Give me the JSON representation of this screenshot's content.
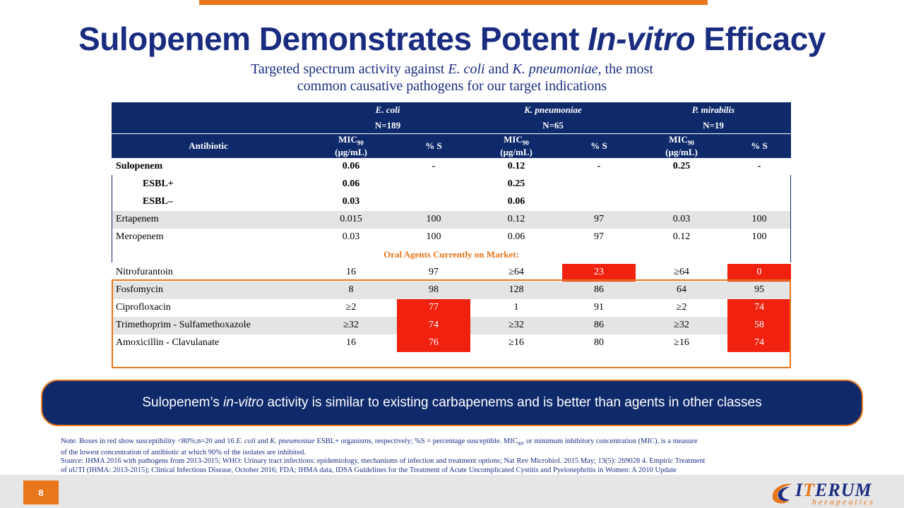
{
  "slide": {
    "title_prefix": "Sulopenem Demonstrates Potent ",
    "title_italic": "In-vitro",
    "title_suffix": " Efficacy",
    "subtitle_1": "Targeted spectrum activity against ",
    "subtitle_ecoli": "E. coli",
    "subtitle_and": " and ",
    "subtitle_kpn": "K. pneumoniae",
    "subtitle_2": ", the most",
    "subtitle_line2": "common causative pathogens for our target indications"
  },
  "table": {
    "organisms": [
      {
        "name": "E. coli",
        "n": "N=189"
      },
      {
        "name": "K. pneumoniae",
        "n": "N=65"
      },
      {
        "name": "P. mirabilis",
        "n": "N=19"
      }
    ],
    "antibiotic_header": "Antibiotic",
    "mic_label": "MIC",
    "mic_sub": "90",
    "mic_unit": "(µg/mL)",
    "pct_s": "% S",
    "rows": [
      {
        "name": "Sulopenem",
        "v": [
          "0.06",
          "-",
          "0.12",
          "-",
          "0.25",
          "-"
        ]
      },
      {
        "name": "ESBL+",
        "v": [
          "0.06",
          "",
          "0.25",
          "",
          "",
          ""
        ]
      },
      {
        "name": "ESBL–",
        "v": [
          "0.03",
          "",
          "0.06",
          "",
          "",
          ""
        ]
      },
      {
        "name": "Ertapenem",
        "v": [
          "0.015",
          "100",
          "0.12",
          "97",
          "0.03",
          "100"
        ]
      },
      {
        "name": "Meropenem",
        "v": [
          "0.03",
          "100",
          "0.06",
          "97",
          "0.12",
          "100"
        ]
      }
    ],
    "oral_header": "Oral Agents Currently on Market:",
    "oral_rows": [
      {
        "name": "Nitrofurantoin",
        "v": [
          "16",
          "97",
          "≥64",
          "23",
          "≥64",
          "0"
        ]
      },
      {
        "name": "Fosfomycin",
        "v": [
          "8",
          "98",
          "128",
          "86",
          "64",
          "95"
        ]
      },
      {
        "name": "Ciprofloxacin",
        "v": [
          "≥2",
          "77",
          "1",
          "91",
          "≥2",
          "74"
        ]
      },
      {
        "name": "Trimethoprim - Sulfamethoxazole",
        "v": [
          "≥32",
          "74",
          "≥32",
          "86",
          "≥32",
          "58"
        ]
      },
      {
        "name": "Amoxicillin - Clavulanate",
        "v": [
          "16",
          "76",
          "≥16",
          "80",
          "≥16",
          "74"
        ]
      }
    ],
    "highlight_color": "#f0210f"
  },
  "callout": {
    "prefix": "Sulopenem’s ",
    "italic": "in-vitro",
    "suffix": " activity is similar to existing carbapenems and is better than agents in other classes"
  },
  "notes": {
    "line1_a": "Note: Boxes in red show susceptibility <80%;n=20 and 16 ",
    "line1_ecoli": "E. coli",
    "line1_and": " and ",
    "line1_kpn": "K. pneumoniae",
    "line1_b": " ESBL+ organisms, respectively; %S = percentage susceptible. MIC",
    "line1_sub": "90",
    "line1_c": ", or minimum inhibitory concentration (MIC), is a measure",
    "line2": "of the lowest concentration of antibiotic at which 90% of the isolates are inhibited.",
    "line3": "Source: IHMA 2016 with pathogens from 2013-2015; WHO: Urinary tract infections: epidemiology, mechanisms of infection and treatment options; Nat Rev Microbiol. 2015 May; 13(5): 269028 4. Empiric Treatment",
    "line4": "of uUTI (IHMA: 2013-2015); Clinical Infectious Disease, October 2016; FDA; IHMA data, IDSA Guidelines for the Treatment of Acute Uncomplicated Cystitis and Pyelonephritis in Women: A 2010 Update"
  },
  "footer": {
    "page_number": "8",
    "logo_main_1": "I",
    "logo_main_T": "T",
    "logo_main_2": "ERUM",
    "logo_sub": "herapeutics"
  },
  "colors": {
    "navy": "#0f2a6b",
    "orange": "#e8761b",
    "red": "#f0210f"
  }
}
